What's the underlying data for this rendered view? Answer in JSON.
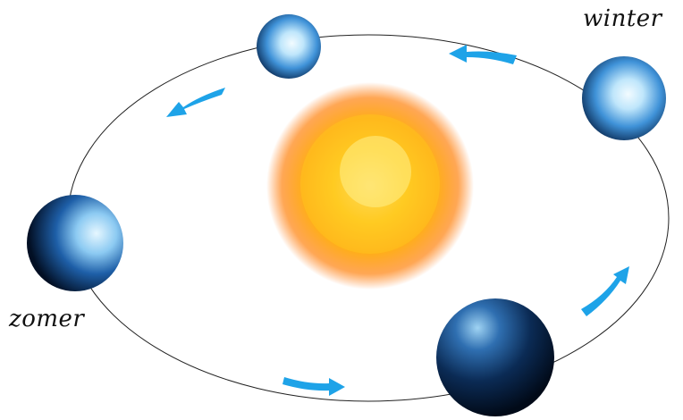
{
  "diagram": {
    "labels": {
      "winter": "winter",
      "zomer": "zomer"
    },
    "colors": {
      "orbit": "#222222",
      "arrows": "#1ea3e8",
      "sun_core": "#ffe24a",
      "sun_mid": "#ffb21e",
      "sun_edge": "#ff7a14",
      "earth_light": "#d6f2ff",
      "earth_mid": "#3a8fd6",
      "earth_dark": "#06203f"
    },
    "icons": [
      "sun-icon",
      "earth-icon",
      "orbit-arrow-icon"
    ]
  }
}
